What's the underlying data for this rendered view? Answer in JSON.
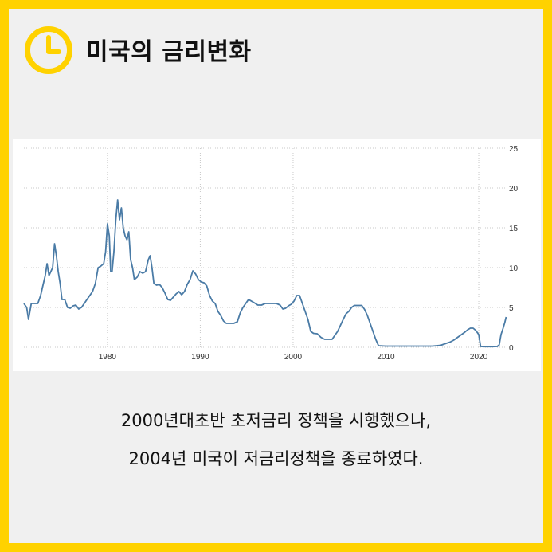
{
  "header": {
    "title": "미국의 금리변화",
    "icon": "clock-icon",
    "accent_color": "#FFD200"
  },
  "caption": {
    "line1": "2000년대초반 초저금리 정책을 시행했으나,",
    "line2": "2004년 미국이 저금리정책을 종료하였다."
  },
  "chart_data": {
    "type": "line",
    "title": "",
    "xlabel": "",
    "ylabel": "",
    "xlim": [
      1971,
      2023
    ],
    "ylim": [
      0,
      25
    ],
    "x_ticks": [
      "1980",
      "1990",
      "2000",
      "2010",
      "2020"
    ],
    "y_ticks": [
      "0",
      "5",
      "10",
      "15",
      "20",
      "25"
    ],
    "grid": true,
    "y_axis_position": "right",
    "line_color": "#4A7BA6",
    "series": [
      {
        "name": "",
        "x": [
          1971.0,
          1971.3,
          1971.5,
          1971.8,
          1972.0,
          1972.5,
          1972.8,
          1973.0,
          1973.3,
          1973.5,
          1973.7,
          1973.9,
          1974.1,
          1974.3,
          1974.5,
          1974.7,
          1974.9,
          1975.1,
          1975.4,
          1975.7,
          1976.0,
          1976.3,
          1976.6,
          1976.9,
          1977.2,
          1977.5,
          1977.8,
          1978.1,
          1978.4,
          1978.7,
          1979.0,
          1979.3,
          1979.6,
          1979.8,
          1980.0,
          1980.2,
          1980.35,
          1980.5,
          1980.7,
          1980.9,
          1981.1,
          1981.3,
          1981.5,
          1981.7,
          1981.9,
          1982.1,
          1982.3,
          1982.5,
          1982.7,
          1982.9,
          1983.2,
          1983.5,
          1983.8,
          1984.1,
          1984.4,
          1984.6,
          1984.8,
          1985.0,
          1985.3,
          1985.6,
          1985.9,
          1986.2,
          1986.5,
          1986.8,
          1987.1,
          1987.4,
          1987.7,
          1988.0,
          1988.3,
          1988.6,
          1988.9,
          1989.2,
          1989.5,
          1989.8,
          1990.1,
          1990.4,
          1990.7,
          1991.0,
          1991.3,
          1991.6,
          1991.9,
          1992.2,
          1992.5,
          1992.8,
          1993.2,
          1993.6,
          1994.0,
          1994.3,
          1994.6,
          1994.9,
          1995.2,
          1995.5,
          1995.8,
          1996.2,
          1996.6,
          1997.0,
          1997.4,
          1997.8,
          1998.2,
          1998.6,
          1998.9,
          1999.2,
          1999.5,
          1999.8,
          2000.1,
          2000.4,
          2000.7,
          2001.0,
          2001.3,
          2001.6,
          2001.9,
          2002.2,
          2002.6,
          2003.0,
          2003.4,
          2003.8,
          2004.2,
          2004.5,
          2004.8,
          2005.1,
          2005.4,
          2005.7,
          2006.0,
          2006.3,
          2006.6,
          2007.0,
          2007.4,
          2007.7,
          2008.0,
          2008.3,
          2008.6,
          2008.9,
          2009.2,
          2010.0,
          2011.0,
          2012.0,
          2013.0,
          2014.0,
          2015.0,
          2015.9,
          2016.5,
          2016.9,
          2017.3,
          2017.6,
          2017.9,
          2018.2,
          2018.5,
          2018.8,
          2019.1,
          2019.4,
          2019.7,
          2020.0,
          2020.2,
          2020.5,
          2021.0,
          2021.5,
          2022.0,
          2022.2,
          2022.4,
          2022.6,
          2022.8,
          2022.95
        ],
        "values": [
          5.5,
          5.0,
          3.5,
          5.5,
          5.5,
          5.5,
          6.5,
          7.5,
          9.0,
          10.5,
          9.0,
          9.5,
          10.0,
          13.0,
          11.5,
          9.5,
          8.0,
          6.0,
          6.0,
          5.0,
          4.9,
          5.2,
          5.3,
          4.8,
          5.0,
          5.5,
          6.0,
          6.5,
          7.0,
          8.0,
          10.0,
          10.2,
          10.5,
          12.0,
          15.5,
          14.0,
          9.5,
          9.5,
          12.0,
          16.0,
          18.5,
          16.0,
          17.5,
          15.0,
          14.0,
          13.5,
          14.5,
          11.0,
          10.0,
          8.5,
          8.8,
          9.5,
          9.3,
          9.5,
          11.0,
          11.5,
          10.0,
          8.0,
          7.8,
          7.9,
          7.5,
          6.8,
          6.0,
          5.9,
          6.3,
          6.7,
          7.0,
          6.6,
          7.0,
          7.9,
          8.5,
          9.6,
          9.2,
          8.5,
          8.2,
          8.1,
          7.7,
          6.5,
          5.8,
          5.5,
          4.5,
          4.0,
          3.3,
          3.0,
          3.0,
          3.0,
          3.2,
          4.3,
          5.0,
          5.5,
          6.0,
          5.8,
          5.6,
          5.3,
          5.3,
          5.5,
          5.5,
          5.5,
          5.5,
          5.3,
          4.8,
          4.9,
          5.2,
          5.4,
          5.8,
          6.5,
          6.5,
          5.5,
          4.5,
          3.5,
          2.0,
          1.75,
          1.7,
          1.25,
          1.0,
          1.0,
          1.0,
          1.5,
          2.0,
          2.75,
          3.5,
          4.2,
          4.5,
          5.0,
          5.25,
          5.25,
          5.25,
          4.75,
          4.0,
          3.0,
          2.0,
          1.0,
          0.2,
          0.15,
          0.15,
          0.15,
          0.15,
          0.15,
          0.15,
          0.25,
          0.5,
          0.65,
          0.9,
          1.15,
          1.4,
          1.65,
          1.9,
          2.2,
          2.4,
          2.4,
          2.1,
          1.6,
          0.1,
          0.08,
          0.08,
          0.08,
          0.1,
          0.3,
          1.6,
          2.3,
          3.1,
          3.8
        ]
      }
    ]
  }
}
